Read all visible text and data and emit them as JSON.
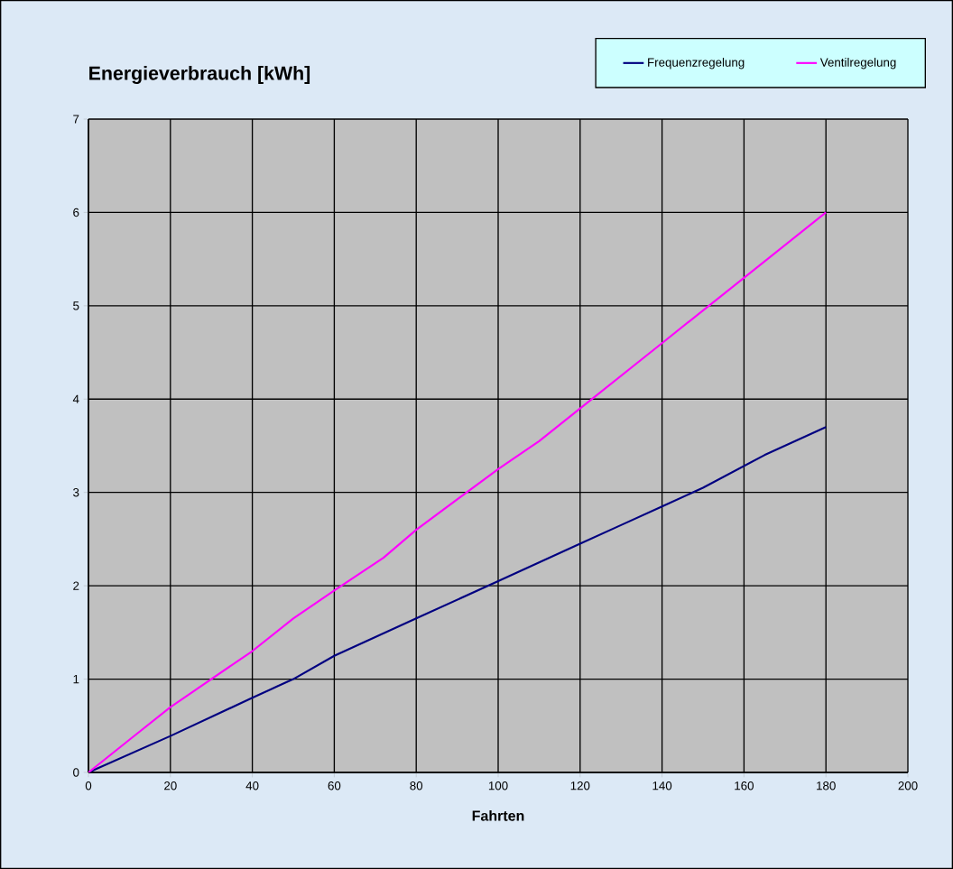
{
  "chart_data": {
    "type": "line",
    "title": "Energieverbrauch [kWh]",
    "xlabel": "Fahrten",
    "xlim": [
      0,
      200
    ],
    "xticks": [
      0,
      20,
      40,
      60,
      80,
      100,
      120,
      140,
      160,
      180,
      200
    ],
    "ylim": [
      0,
      7
    ],
    "yticks": [
      0,
      1,
      2,
      3,
      4,
      5,
      6,
      7
    ],
    "grid": true,
    "legend": "top right",
    "marker": "none",
    "line_style": "solid",
    "series": [
      {
        "name": "Frequenzregelung",
        "color": "#000080",
        "x": [
          0,
          20,
          40,
          46,
          50,
          60,
          70,
          80,
          100,
          120,
          130,
          140,
          150,
          165,
          180
        ],
        "values": [
          0,
          0.39,
          0.8,
          0.92,
          1.0,
          1.25,
          1.45,
          1.65,
          2.05,
          2.45,
          2.65,
          2.85,
          3.05,
          3.4,
          3.7
        ]
      },
      {
        "name": "Ventilregelung",
        "color": "#ff00ff",
        "x": [
          0,
          10,
          20,
          25,
          40,
          50,
          55,
          60,
          72,
          80,
          100,
          110,
          120,
          140,
          160,
          180
        ],
        "values": [
          0,
          0.35,
          0.7,
          0.85,
          1.3,
          1.65,
          1.8,
          1.95,
          2.3,
          2.6,
          3.25,
          3.55,
          3.9,
          4.6,
          5.3,
          6.0
        ]
      }
    ]
  }
}
